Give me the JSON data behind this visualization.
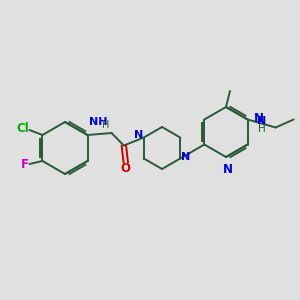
{
  "bg_color": "#e0e0e0",
  "bond_color": "#2a5a3a",
  "n_color": "#0000cc",
  "o_color": "#cc0000",
  "cl_color": "#00aa00",
  "f_color": "#cc00cc",
  "font_size": 8.5,
  "lw": 1.4
}
